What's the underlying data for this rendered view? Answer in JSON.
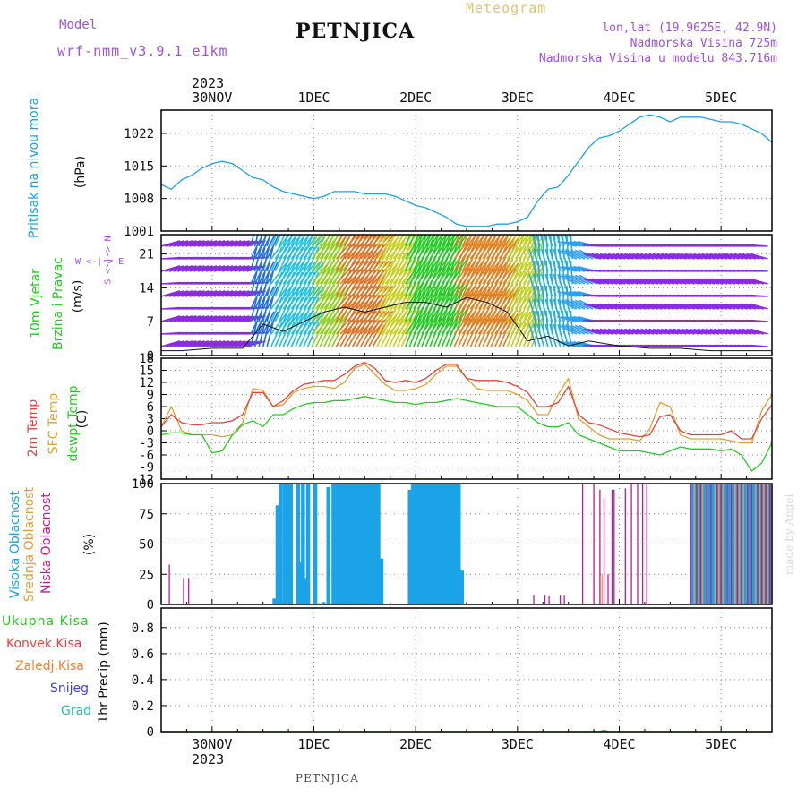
{
  "header": {
    "model_label": "Model",
    "model_name": "wrf-nmm_v3.9.1 e1km",
    "station": "PETNJICA",
    "product": "Meteogram",
    "coords": "lon,lat (19.9625E, 42.9N)",
    "altitude": "Nadmorska Visina 725m",
    "model_altitude": "Nadmorska Visina u modelu 843.716m"
  },
  "footer": {
    "station": "PETNJICA",
    "credit": "made by Angel"
  },
  "time_axis": {
    "year": "2023",
    "ticks": [
      "30NOV",
      "1DEC",
      "2DEC",
      "3DEC",
      "4DEC",
      "5DEC"
    ],
    "tick_days": [
      0,
      1,
      2,
      3,
      4,
      5
    ],
    "xlim_days": [
      -0.5,
      5.5
    ]
  },
  "colors": {
    "pressure": "#1aa3e6",
    "temp2m": "#e8413c",
    "sfc": "#e0a030",
    "dewpt": "#22cc22",
    "high_cloud": "#1aa3e6",
    "mid_cloud": "#e0a030",
    "low_cloud": "#c0198c",
    "total_precip": "#22cc22",
    "conv": "#e8413c",
    "frz": "#f08030",
    "snow": "#4040e0",
    "grad": "#20c0b0",
    "wind_axis": "#a050e0"
  },
  "chart_data": [
    {
      "type": "line",
      "ylabel_title": "Pritisak na nivou mora",
      "ylabel_unit": "(hPa)",
      "yticks": [
        "1001",
        "1008",
        "1015",
        "1022"
      ],
      "ylim": [
        1001,
        1027
      ],
      "series": [
        {
          "x": [
            -0.5,
            -0.4,
            -0.3,
            -0.2,
            -0.1,
            0,
            0.1,
            0.2,
            0.3,
            0.4,
            0.5,
            0.6,
            0.7,
            0.8,
            0.9,
            1,
            1.1,
            1.2,
            1.3,
            1.4,
            1.5,
            1.6,
            1.7,
            1.8,
            1.9,
            2,
            2.1,
            2.2,
            2.3,
            2.4,
            2.5,
            2.6,
            2.7,
            2.8,
            2.9,
            3,
            3.1,
            3.2,
            3.3,
            3.4,
            3.5,
            3.6,
            3.7,
            3.8,
            3.9,
            4,
            4.1,
            4.2,
            4.3,
            4.4,
            4.5,
            4.6,
            4.7,
            4.8,
            4.9,
            5,
            5.1,
            5.2,
            5.3,
            5.4,
            5.5
          ],
          "values": [
            1011,
            1010,
            1012,
            1013,
            1014.5,
            1015.5,
            1016,
            1015.5,
            1014,
            1012.5,
            1012,
            1010.5,
            1009.5,
            1009,
            1008.5,
            1008,
            1008.5,
            1009.5,
            1009.5,
            1009.5,
            1009,
            1009,
            1009,
            1008.5,
            1007.5,
            1006.5,
            1006,
            1005,
            1004,
            1002.5,
            1002,
            1002,
            1002,
            1002.5,
            1002.5,
            1003,
            1004,
            1007.5,
            1010,
            1010.5,
            1013,
            1016,
            1019,
            1021,
            1021.5,
            1022.5,
            1024,
            1025.5,
            1026,
            1025.5,
            1024.5,
            1025.5,
            1025.5,
            1025.5,
            1025,
            1024.5,
            1024.5,
            1024,
            1023,
            1022,
            1020
          ]
        }
      ]
    },
    {
      "type": "line",
      "ylabel_title": "10m Vjetar",
      "ylabel_sub": "Brzina i Pravac",
      "ylabel_unit": "(m/s)",
      "direction_key": "W <-|-> E",
      "direction_key_v": "S <-|-> N",
      "yticks": [
        "0",
        "7",
        "14",
        "21"
      ],
      "ylim": [
        0,
        25
      ],
      "series": [
        {
          "x": [
            -0.5,
            -0.3,
            0,
            0.3,
            0.5,
            0.7,
            0.9,
            1.1,
            1.3,
            1.5,
            1.7,
            1.9,
            2.1,
            2.3,
            2.5,
            2.7,
            2.9,
            3.1,
            3.3,
            3.5,
            3.7,
            4,
            4.3,
            4.6,
            4.9,
            5.2,
            5.5
          ],
          "values": [
            1,
            1,
            1.5,
            1.5,
            6.5,
            5,
            7,
            9,
            10,
            9,
            10,
            11,
            11,
            10,
            12,
            11,
            9,
            3,
            4,
            2,
            3,
            2,
            1.5,
            1.5,
            1,
            1,
            1
          ]
        }
      ]
    },
    {
      "type": "line",
      "ylabel_lines": [
        "2m Temp",
        "SFC Temp",
        "dewpt Temp"
      ],
      "ylabel_unit": "(C)",
      "yticks": [
        "-12",
        "-9",
        "-6",
        "-3",
        "0",
        "3",
        "6",
        "9",
        "12",
        "15",
        "18"
      ],
      "ylim": [
        -12,
        18
      ],
      "series": [
        {
          "name": "2m Temp",
          "x": [
            -0.5,
            -0.4,
            -0.3,
            -0.2,
            -0.1,
            0,
            0.1,
            0.2,
            0.3,
            0.4,
            0.5,
            0.6,
            0.7,
            0.8,
            0.9,
            1,
            1.1,
            1.2,
            1.3,
            1.4,
            1.5,
            1.6,
            1.7,
            1.8,
            1.9,
            2,
            2.1,
            2.2,
            2.3,
            2.4,
            2.5,
            2.6,
            2.7,
            2.8,
            2.9,
            3,
            3.1,
            3.2,
            3.3,
            3.4,
            3.5,
            3.6,
            3.7,
            3.8,
            3.9,
            4,
            4.1,
            4.2,
            4.3,
            4.4,
            4.5,
            4.6,
            4.7,
            4.8,
            4.9,
            5,
            5.1,
            5.2,
            5.3,
            5.4,
            5.5
          ],
          "values": [
            1,
            4,
            2,
            1.5,
            1.5,
            2,
            2,
            2.5,
            4,
            9.5,
            9.5,
            6,
            7.5,
            10,
            11.5,
            12,
            12.5,
            12.5,
            14,
            16,
            17,
            15.5,
            12.5,
            12,
            12.5,
            12,
            13,
            15,
            16.5,
            16.5,
            13,
            12.5,
            12.5,
            12.5,
            12,
            11,
            9.5,
            6,
            6,
            7,
            11,
            4,
            2,
            1.5,
            0.5,
            -0.5,
            -1,
            -1.5,
            -1,
            3.5,
            4,
            0,
            -1,
            -1,
            -1,
            -1,
            0,
            -2,
            -2,
            3,
            6.5
          ]
        },
        {
          "name": "SFC Temp",
          "x": [
            -0.5,
            -0.4,
            -0.3,
            -0.2,
            -0.1,
            0,
            0.1,
            0.2,
            0.3,
            0.4,
            0.5,
            0.6,
            0.7,
            0.8,
            0.9,
            1,
            1.1,
            1.2,
            1.3,
            1.4,
            1.5,
            1.6,
            1.7,
            1.8,
            1.9,
            2,
            2.1,
            2.2,
            2.3,
            2.4,
            2.5,
            2.6,
            2.7,
            2.8,
            2.9,
            3,
            3.1,
            3.2,
            3.3,
            3.4,
            3.5,
            3.6,
            3.7,
            3.8,
            3.9,
            4,
            4.1,
            4.2,
            4.3,
            4.4,
            4.5,
            4.6,
            4.7,
            4.8,
            4.9,
            5,
            5.1,
            5.2,
            5.3,
            5.4,
            5.5
          ],
          "values": [
            1,
            6,
            0,
            -1,
            -1,
            -1,
            -1.5,
            -1,
            2,
            10.5,
            10,
            6,
            6.5,
            9.5,
            10.5,
            11,
            11,
            10.5,
            12,
            15.5,
            16.5,
            14,
            11.5,
            10,
            10,
            10.5,
            11.5,
            14,
            16,
            16,
            13,
            10.5,
            10,
            10,
            10,
            9,
            7.5,
            4,
            4,
            9,
            13,
            3,
            1,
            -1,
            -2,
            -2,
            -2,
            -2.5,
            0.5,
            7,
            6,
            -1,
            -2,
            -2,
            -2,
            -2,
            -2.5,
            -3,
            -3,
            5,
            9
          ]
        },
        {
          "name": "dewpt Temp",
          "x": [
            -0.5,
            -0.4,
            -0.3,
            -0.2,
            -0.1,
            0,
            0.1,
            0.2,
            0.3,
            0.4,
            0.5,
            0.6,
            0.7,
            0.8,
            0.9,
            1,
            1.1,
            1.2,
            1.3,
            1.4,
            1.5,
            1.6,
            1.7,
            1.8,
            1.9,
            2,
            2.1,
            2.2,
            2.3,
            2.4,
            2.5,
            2.6,
            2.7,
            2.8,
            2.9,
            3,
            3.1,
            3.2,
            3.3,
            3.4,
            3.5,
            3.6,
            3.7,
            3.8,
            3.9,
            4,
            4.1,
            4.2,
            4.3,
            4.4,
            4.5,
            4.6,
            4.7,
            4.8,
            4.9,
            5,
            5.1,
            5.2,
            5.3,
            5.4,
            5.5
          ],
          "values": [
            -1,
            -0.5,
            -0.5,
            -1,
            -1,
            -5.5,
            -5,
            -1,
            1.5,
            2.5,
            1,
            4,
            4,
            5.5,
            6.5,
            7,
            7,
            7.5,
            7.5,
            8,
            8.5,
            8,
            7.5,
            7,
            7,
            6.5,
            7,
            7,
            7.5,
            8,
            7.5,
            7,
            6.5,
            6,
            6,
            6,
            4,
            2,
            1,
            1,
            2,
            -1,
            -2,
            -3,
            -4,
            -5,
            -5,
            -5,
            -5.5,
            -6,
            -5,
            -4,
            -4.5,
            -4.5,
            -4.5,
            -5,
            -4.5,
            -6,
            -10,
            -8,
            -3
          ]
        }
      ]
    },
    {
      "type": "bar",
      "ylabel_lines": [
        "Visoka Oblacnost",
        "Srednja Oblacnost",
        "Niska Oblacnost"
      ],
      "ylabel_unit": "(%)",
      "yticks": [
        "0",
        "25",
        "50",
        "75",
        "100"
      ],
      "ylim": [
        0,
        100
      ],
      "series": [
        {
          "name": "Visoka Oblacnost",
          "x": [
            0.62,
            0.65,
            0.68,
            0.72,
            0.76,
            0.78,
            0.85,
            0.88,
            0.9,
            0.92,
            0.95,
            1.02,
            1.05,
            1.1,
            1.15,
            1.2,
            1.22,
            1.25,
            1.28,
            1.31,
            1.34,
            1.37,
            1.4,
            1.43,
            1.46,
            1.49,
            1.52,
            1.55,
            1.58,
            1.61,
            1.64,
            1.67,
            1.95,
            1.98,
            2.01,
            2.04,
            2.07,
            2.1,
            2.13,
            2.16,
            2.19,
            2.22,
            2.25,
            2.28,
            2.31,
            2.34,
            2.37,
            2.4,
            2.43,
            2.46,
            4.72,
            4.76,
            4.8,
            4.84,
            4.88,
            4.92,
            4.96,
            5.0,
            5.04,
            5.08,
            5.12,
            5.16,
            5.2,
            5.24,
            5.28,
            5.32,
            5.36,
            5.4,
            5.44,
            5.48
          ],
          "values": [
            5,
            82,
            100,
            100,
            100,
            100,
            100,
            35,
            100,
            22,
            100,
            100,
            1,
            2,
            97,
            100,
            100,
            100,
            100,
            100,
            100,
            100,
            100,
            100,
            100,
            100,
            100,
            100,
            100,
            100,
            100,
            38,
            95,
            100,
            100,
            100,
            100,
            100,
            100,
            100,
            100,
            100,
            100,
            100,
            100,
            100,
            100,
            100,
            100,
            28,
            100,
            100,
            100,
            100,
            100,
            100,
            100,
            100,
            100,
            100,
            100,
            100,
            100,
            100,
            100,
            100,
            100,
            100,
            100,
            100
          ]
        },
        {
          "name": "Srednja Oblacnost",
          "x": [
            3.83,
            4.74,
            4.78,
            4.82,
            4.86,
            4.9,
            4.94,
            4.98,
            5.02,
            5.06,
            5.1,
            5.14,
            5.18,
            5.22,
            5.26,
            5.3,
            5.34,
            5.38,
            5.42,
            5.46,
            5.5
          ],
          "values": [
            25,
            100,
            100,
            100,
            100,
            100,
            100,
            100,
            100,
            100,
            100,
            100,
            100,
            100,
            100,
            100,
            100,
            100,
            100,
            100,
            100
          ]
        },
        {
          "name": "Niska Oblacnost",
          "x": [
            -0.42,
            -0.28,
            -0.23,
            3.16,
            3.27,
            3.31,
            3.42,
            3.46,
            3.64,
            3.75,
            3.81,
            3.85,
            3.89,
            3.93,
            3.95,
            4.06,
            4.12,
            4.18,
            4.23,
            4.27,
            4.7,
            4.76,
            4.8,
            4.86,
            4.9,
            4.96,
            5.0,
            5.06,
            5.1,
            5.16,
            5.2,
            5.26,
            5.3,
            5.36,
            5.4,
            5.44,
            5.48
          ],
          "values": [
            33,
            22,
            22,
            8,
            8,
            7,
            8,
            8,
            100,
            100,
            95,
            88,
            25,
            95,
            95,
            96,
            100,
            100,
            100,
            100,
            100,
            100,
            100,
            100,
            100,
            100,
            100,
            100,
            100,
            100,
            100,
            100,
            100,
            100,
            100,
            100,
            100
          ]
        }
      ]
    },
    {
      "type": "line",
      "ylabel_lines": [
        "Ukupna Kisa",
        "Konvek.Kisa",
        "Zaledj.Kisa",
        "Snijeg",
        "Grad"
      ],
      "ylabel_unit": "1hr Precip (mm)",
      "yticks": [
        "0",
        "0.2",
        "0.4",
        "0.6",
        "0.8"
      ],
      "ylim": [
        0,
        0.95
      ],
      "series": [
        {
          "name": "Ukupna Kisa",
          "x": [
            -0.5,
            3.8,
            3.85,
            3.9,
            5.5
          ],
          "values": [
            0,
            0,
            0.01,
            0,
            0
          ]
        }
      ]
    }
  ]
}
